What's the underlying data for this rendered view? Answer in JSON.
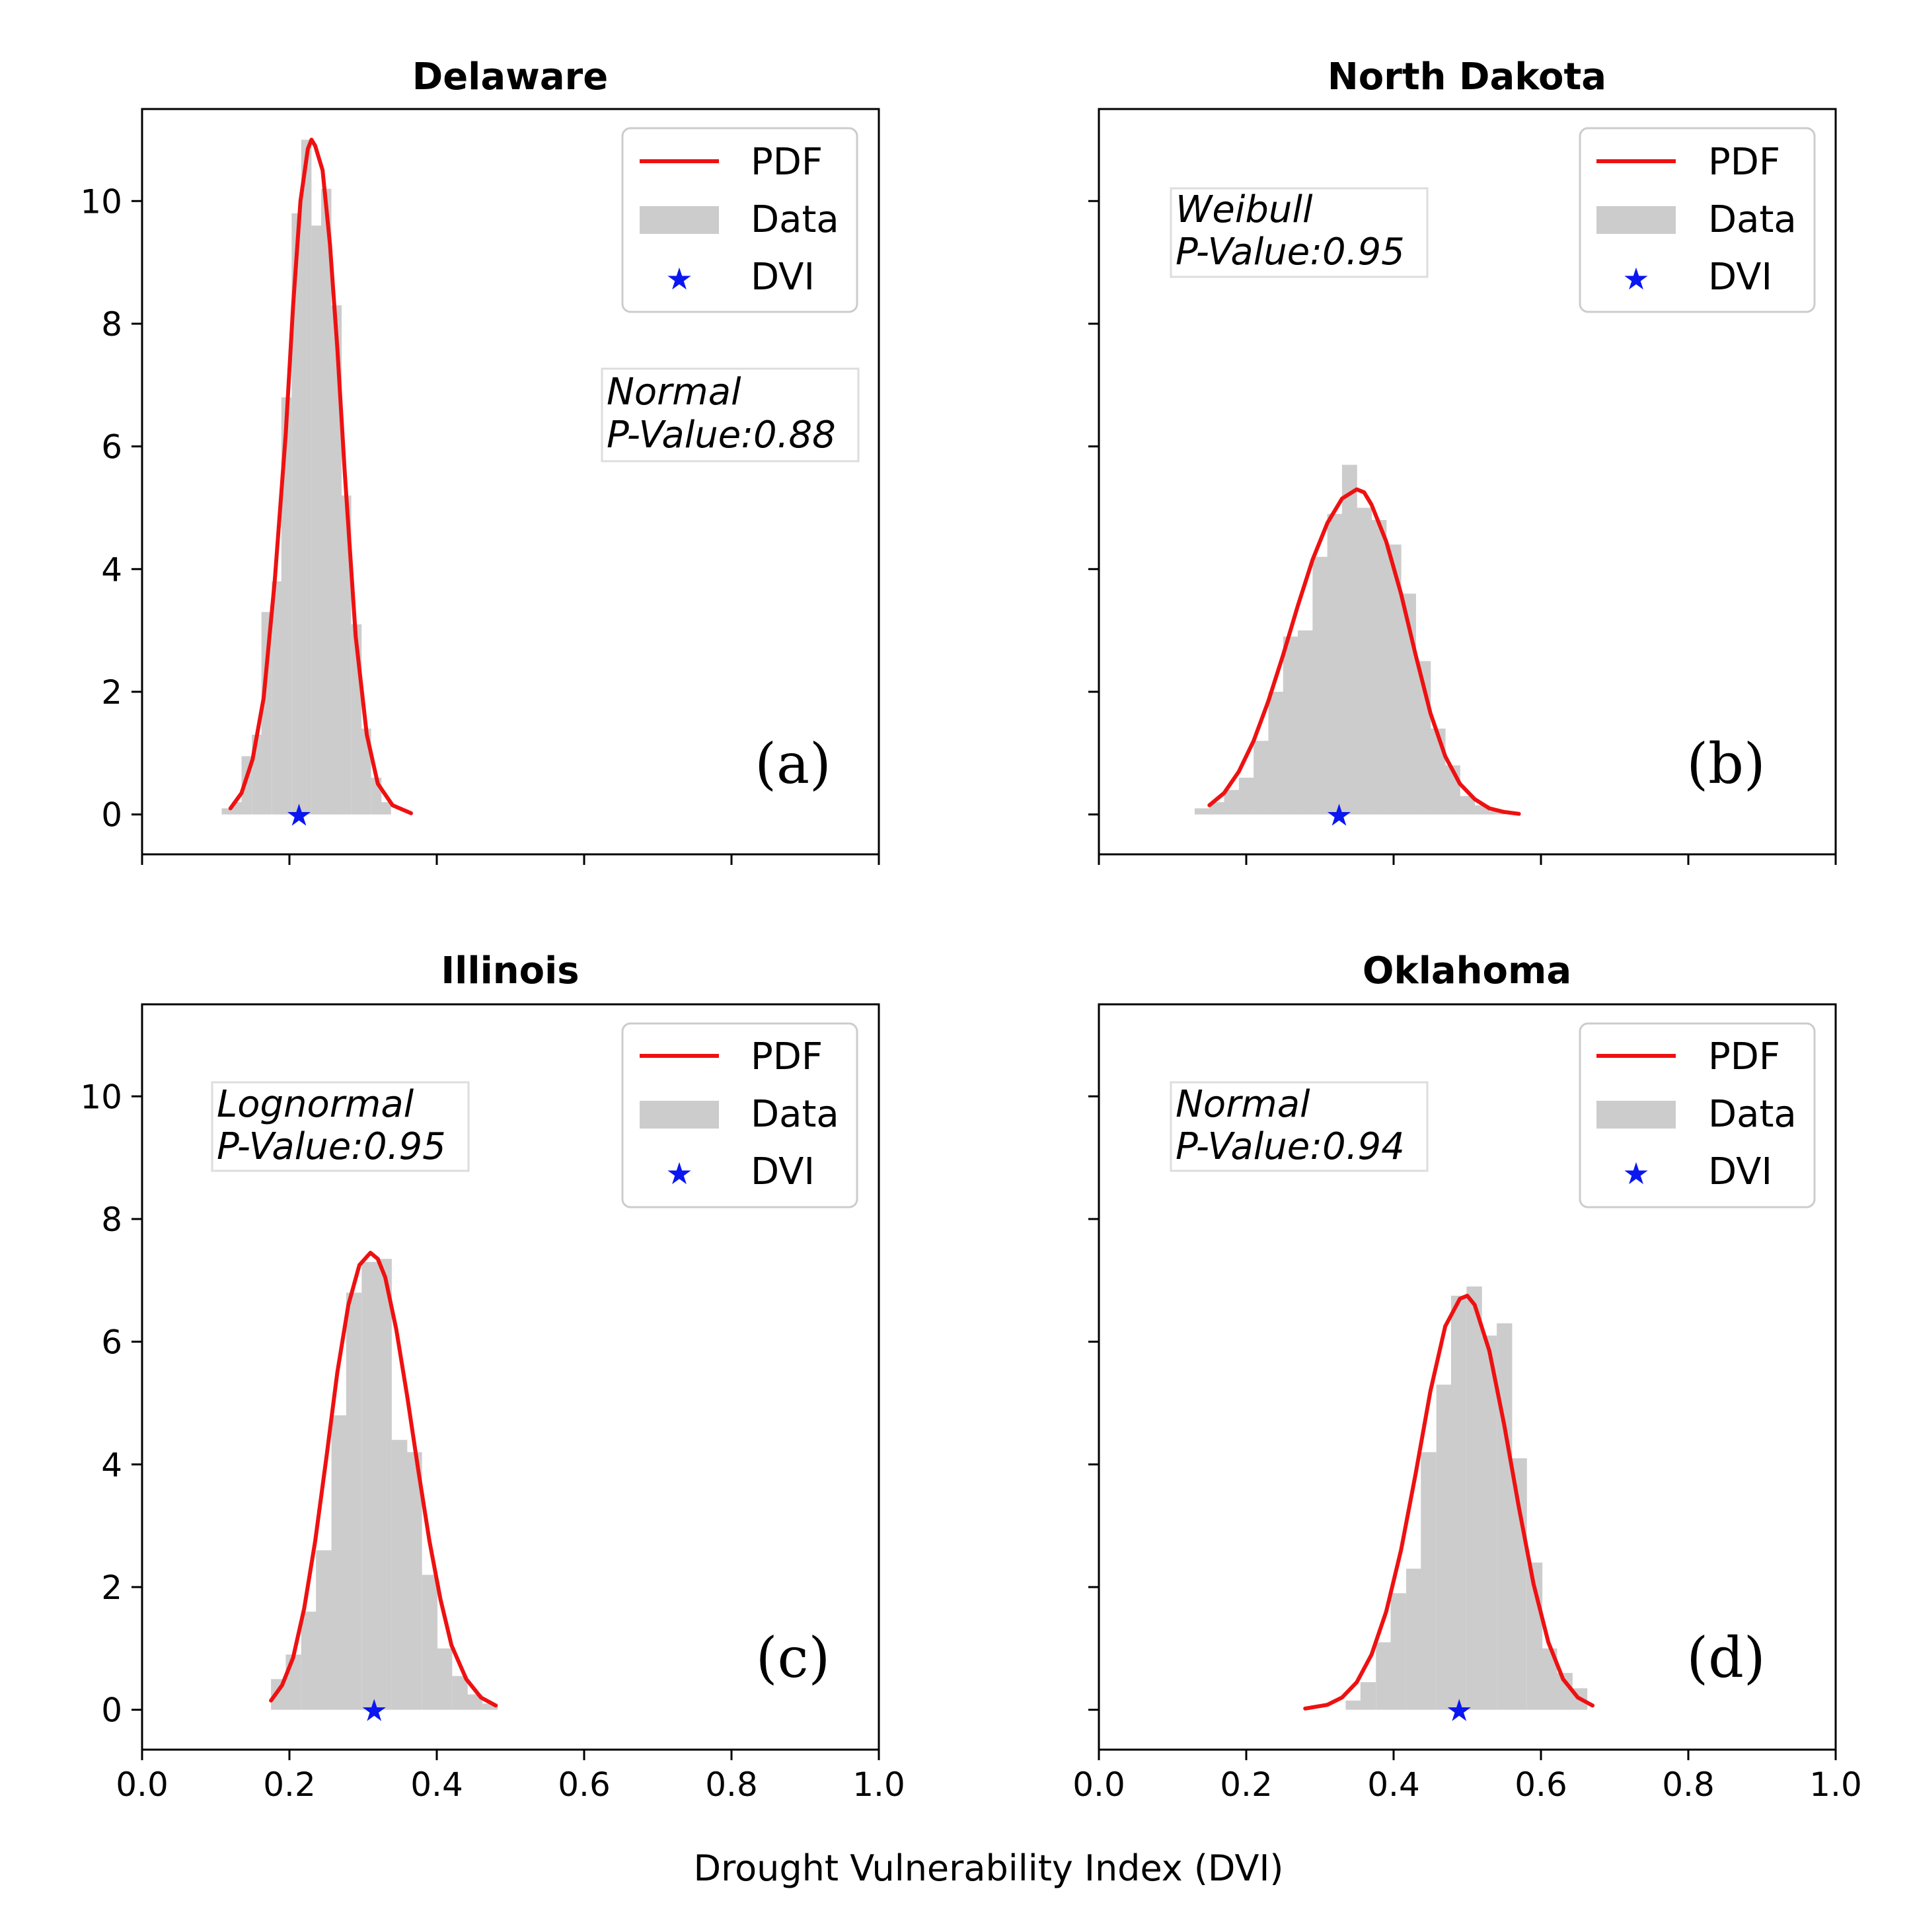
{
  "figure": {
    "xlabel": "Drought Vulnerability Index (DVI)"
  },
  "legend": {
    "pdf": "PDF",
    "data": "Data",
    "dvi": "DVI"
  },
  "colors": {
    "pdf": "#ee1111",
    "hist": "#cccccc",
    "dvi": "#0a17f0",
    "axis": "#000000"
  },
  "chart_data": [
    {
      "type": "histogram+line",
      "title": "Delaware",
      "panel_label": "(a)",
      "fit": {
        "distribution": "Normal",
        "p_value_text": "P-Value:0.88"
      },
      "xlim": [
        0.0,
        1.0
      ],
      "ylim": [
        -0.65,
        11.5
      ],
      "xticks": [
        0.0,
        0.2,
        0.4,
        0.6,
        0.8,
        1.0
      ],
      "yticks": [
        0,
        2,
        4,
        6,
        8,
        10
      ],
      "show_x_ticklabels": false,
      "show_y_ticklabels": true,
      "hist_bin_width": 0.0135,
      "hist": {
        "bin_starts": [
          0.108,
          0.122,
          0.135,
          0.149,
          0.162,
          0.176,
          0.189,
          0.203,
          0.216,
          0.23,
          0.243,
          0.257,
          0.27,
          0.284,
          0.297,
          0.311,
          0.324
        ],
        "heights": [
          0.1,
          0.2,
          0.95,
          1.3,
          3.3,
          3.8,
          6.8,
          9.8,
          11.0,
          9.6,
          10.2,
          8.3,
          5.2,
          3.1,
          1.4,
          0.6,
          0.2
        ]
      },
      "pdf": {
        "x": [
          0.12,
          0.135,
          0.15,
          0.165,
          0.18,
          0.195,
          0.205,
          0.215,
          0.225,
          0.23,
          0.235,
          0.245,
          0.255,
          0.265,
          0.275,
          0.29,
          0.305,
          0.32,
          0.34,
          0.365
        ],
        "y": [
          0.1,
          0.35,
          0.9,
          1.9,
          3.8,
          6.2,
          8.3,
          10.0,
          10.85,
          11.0,
          10.9,
          10.5,
          9.3,
          7.6,
          5.6,
          2.9,
          1.3,
          0.5,
          0.15,
          0.02
        ]
      },
      "dvi": {
        "x": 0.213,
        "y": 0.0
      }
    },
    {
      "type": "histogram+line",
      "title": "North Dakota",
      "panel_label": "(b)",
      "fit": {
        "distribution": "Weibull",
        "p_value_text": "P-Value:0.95"
      },
      "xlim": [
        0.0,
        1.0
      ],
      "ylim": [
        -0.65,
        11.5
      ],
      "xticks": [
        0.0,
        0.2,
        0.4,
        0.6,
        0.8,
        1.0
      ],
      "yticks": [
        0,
        2,
        4,
        6,
        8,
        10
      ],
      "show_x_ticklabels": false,
      "show_y_ticklabels": false,
      "hist_bin_width": 0.02,
      "hist": {
        "bin_starts": [
          0.13,
          0.15,
          0.17,
          0.19,
          0.21,
          0.23,
          0.25,
          0.27,
          0.29,
          0.31,
          0.33,
          0.35,
          0.37,
          0.39,
          0.41,
          0.43,
          0.45,
          0.47,
          0.49,
          0.51,
          0.53
        ],
        "heights": [
          0.1,
          0.2,
          0.4,
          0.6,
          1.2,
          2.0,
          2.9,
          3.0,
          4.2,
          4.9,
          5.7,
          5.0,
          4.8,
          4.4,
          3.6,
          2.5,
          1.4,
          0.8,
          0.3,
          0.15,
          0.05
        ]
      },
      "pdf": {
        "x": [
          0.15,
          0.17,
          0.19,
          0.21,
          0.23,
          0.25,
          0.27,
          0.29,
          0.31,
          0.33,
          0.35,
          0.36,
          0.37,
          0.39,
          0.41,
          0.43,
          0.45,
          0.47,
          0.49,
          0.51,
          0.53,
          0.55,
          0.57
        ],
        "y": [
          0.15,
          0.35,
          0.7,
          1.2,
          1.85,
          2.6,
          3.4,
          4.15,
          4.75,
          5.15,
          5.3,
          5.25,
          5.05,
          4.45,
          3.6,
          2.6,
          1.65,
          0.95,
          0.5,
          0.25,
          0.1,
          0.04,
          0.01
        ]
      },
      "dvi": {
        "x": 0.326,
        "y": 0.0
      }
    },
    {
      "type": "histogram+line",
      "title": "Illinois",
      "panel_label": "(c)",
      "fit": {
        "distribution": "Lognormal",
        "p_value_text": "P-Value:0.95"
      },
      "xlim": [
        0.0,
        1.0
      ],
      "ylim": [
        -0.65,
        11.5
      ],
      "xticks": [
        0.0,
        0.2,
        0.4,
        0.6,
        0.8,
        1.0
      ],
      "yticks": [
        0,
        2,
        4,
        6,
        8,
        10
      ],
      "show_x_ticklabels": true,
      "show_y_ticklabels": true,
      "hist_bin_width": 0.0205,
      "hist": {
        "bin_starts": [
          0.175,
          0.195,
          0.216,
          0.236,
          0.257,
          0.277,
          0.298,
          0.318,
          0.339,
          0.359,
          0.38,
          0.4,
          0.421,
          0.441,
          0.462
        ],
        "heights": [
          0.5,
          0.9,
          1.6,
          2.6,
          4.8,
          6.8,
          7.3,
          7.35,
          4.4,
          4.2,
          2.2,
          1.0,
          0.55,
          0.25,
          0.1
        ]
      },
      "pdf": {
        "x": [
          0.175,
          0.19,
          0.205,
          0.22,
          0.235,
          0.25,
          0.265,
          0.28,
          0.295,
          0.31,
          0.32,
          0.33,
          0.345,
          0.36,
          0.375,
          0.39,
          0.405,
          0.42,
          0.44,
          0.46,
          0.48
        ],
        "y": [
          0.15,
          0.4,
          0.85,
          1.65,
          2.75,
          4.1,
          5.5,
          6.6,
          7.25,
          7.45,
          7.35,
          7.05,
          6.2,
          5.1,
          3.9,
          2.75,
          1.8,
          1.05,
          0.5,
          0.2,
          0.07
        ]
      },
      "dvi": {
        "x": 0.315,
        "y": 0.0
      }
    },
    {
      "type": "histogram+line",
      "title": "Oklahoma",
      "panel_label": "(d)",
      "fit": {
        "distribution": "Normal",
        "p_value_text": "P-Value:0.94"
      },
      "xlim": [
        0.0,
        1.0
      ],
      "ylim": [
        -0.65,
        11.5
      ],
      "xticks": [
        0.0,
        0.2,
        0.4,
        0.6,
        0.8,
        1.0
      ],
      "yticks": [
        0,
        2,
        4,
        6,
        8,
        10
      ],
      "show_x_ticklabels": true,
      "show_y_ticklabels": false,
      "hist_bin_width": 0.0205,
      "hist": {
        "bin_starts": [
          0.335,
          0.355,
          0.376,
          0.396,
          0.417,
          0.437,
          0.458,
          0.478,
          0.499,
          0.519,
          0.54,
          0.56,
          0.581,
          0.601,
          0.622,
          0.642
        ],
        "heights": [
          0.15,
          0.45,
          1.1,
          1.9,
          2.3,
          4.2,
          5.3,
          6.75,
          6.9,
          6.1,
          6.3,
          4.1,
          2.4,
          1.0,
          0.6,
          0.35
        ]
      },
      "pdf": {
        "x": [
          0.28,
          0.31,
          0.33,
          0.35,
          0.37,
          0.39,
          0.41,
          0.43,
          0.45,
          0.47,
          0.49,
          0.5,
          0.51,
          0.53,
          0.55,
          0.57,
          0.59,
          0.61,
          0.63,
          0.65,
          0.67
        ],
        "y": [
          0.02,
          0.08,
          0.2,
          0.45,
          0.9,
          1.6,
          2.6,
          3.85,
          5.2,
          6.25,
          6.7,
          6.75,
          6.6,
          5.85,
          4.65,
          3.3,
          2.05,
          1.1,
          0.5,
          0.2,
          0.07
        ]
      },
      "dvi": {
        "x": 0.489,
        "y": 0.0
      }
    }
  ]
}
